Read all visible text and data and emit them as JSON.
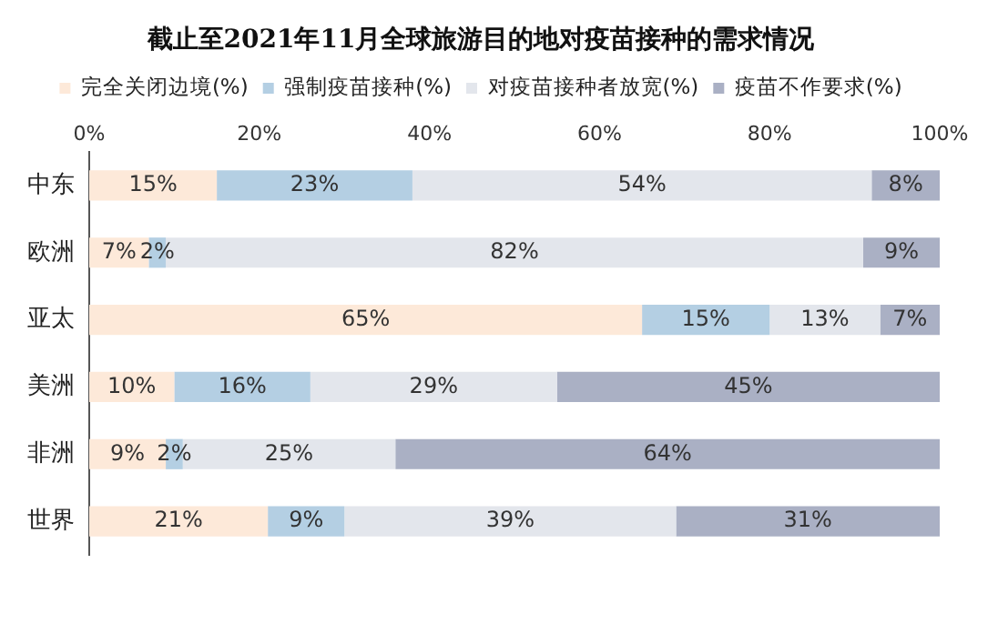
{
  "chart_data": {
    "type": "bar",
    "orientation": "horizontal",
    "stacked": true,
    "title": "截止至2021年11月全球旅游目的地对疫苗接种的需求情况",
    "categories": [
      "中东",
      "欧洲",
      "亚太",
      "美洲",
      "非洲",
      "世界"
    ],
    "series": [
      {
        "name": "完全关闭边境(%)",
        "color": "#fde9d9",
        "values": [
          15,
          7,
          65,
          10,
          9,
          21
        ],
        "value_labels": [
          "15%",
          "7%",
          "65%",
          "10%",
          "9%",
          "21%"
        ]
      },
      {
        "name": "强制疫苗接种(%)",
        "color": "#b4cfe3",
        "values": [
          23,
          2,
          15,
          16,
          2,
          9
        ],
        "value_labels": [
          "23%",
          "2%",
          "15%",
          "16%",
          "2%",
          "9%"
        ]
      },
      {
        "name": "对疫苗接种者放宽(%)",
        "color": "#e3e6ec",
        "values": [
          54,
          82,
          13,
          29,
          25,
          39
        ],
        "value_labels": [
          "54%",
          "82%",
          "13%",
          "29%",
          "25%",
          "39%"
        ]
      },
      {
        "name": "疫苗不作要求(%)",
        "color": "#aab0c4",
        "values": [
          8,
          9,
          7,
          45,
          64,
          31
        ],
        "value_labels": [
          "8%",
          "9%",
          "7%",
          "45%",
          "64%",
          "31%"
        ]
      }
    ],
    "xlim": [
      0,
      100
    ],
    "xticks": [
      {
        "value": 0,
        "label": "0%"
      },
      {
        "value": 20,
        "label": "20%"
      },
      {
        "value": 40,
        "label": "40%"
      },
      {
        "value": 60,
        "label": "60%"
      },
      {
        "value": 80,
        "label": "80%"
      },
      {
        "value": 100,
        "label": "100%"
      }
    ],
    "grid": false,
    "legend": "top"
  }
}
